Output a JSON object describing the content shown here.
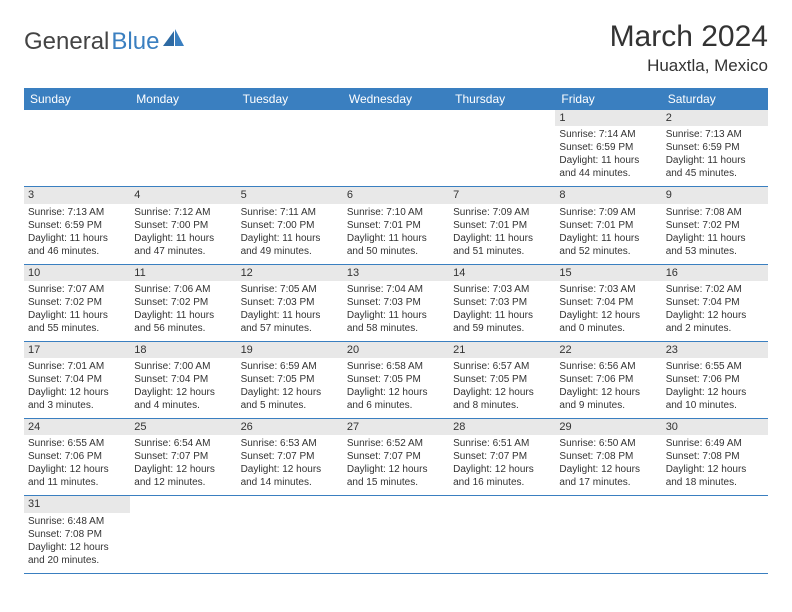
{
  "logo": {
    "part1": "General",
    "part2": "Blue"
  },
  "title": "March 2024",
  "location": "Huaxtla, Mexico",
  "weekdays": [
    "Sunday",
    "Monday",
    "Tuesday",
    "Wednesday",
    "Thursday",
    "Friday",
    "Saturday"
  ],
  "colors": {
    "header_bg": "#3a7fc0",
    "header_text": "#ffffff",
    "daynum_bg": "#e8e8e8",
    "cell_border": "#3a7fc0",
    "text": "#333333",
    "background": "#ffffff"
  },
  "typography": {
    "month_title_fontsize": 30,
    "location_fontsize": 17,
    "weekday_fontsize": 12,
    "cell_fontsize": 10,
    "daynum_fontsize": 11,
    "logo_fontsize": 24
  },
  "layout": {
    "columns": 7,
    "rows": 6,
    "start_weekday_index": 5
  },
  "days": [
    {
      "n": 1,
      "sunrise": "7:14 AM",
      "sunset": "6:59 PM",
      "daylight": "11 hours and 44 minutes."
    },
    {
      "n": 2,
      "sunrise": "7:13 AM",
      "sunset": "6:59 PM",
      "daylight": "11 hours and 45 minutes."
    },
    {
      "n": 3,
      "sunrise": "7:13 AM",
      "sunset": "6:59 PM",
      "daylight": "11 hours and 46 minutes."
    },
    {
      "n": 4,
      "sunrise": "7:12 AM",
      "sunset": "7:00 PM",
      "daylight": "11 hours and 47 minutes."
    },
    {
      "n": 5,
      "sunrise": "7:11 AM",
      "sunset": "7:00 PM",
      "daylight": "11 hours and 49 minutes."
    },
    {
      "n": 6,
      "sunrise": "7:10 AM",
      "sunset": "7:01 PM",
      "daylight": "11 hours and 50 minutes."
    },
    {
      "n": 7,
      "sunrise": "7:09 AM",
      "sunset": "7:01 PM",
      "daylight": "11 hours and 51 minutes."
    },
    {
      "n": 8,
      "sunrise": "7:09 AM",
      "sunset": "7:01 PM",
      "daylight": "11 hours and 52 minutes."
    },
    {
      "n": 9,
      "sunrise": "7:08 AM",
      "sunset": "7:02 PM",
      "daylight": "11 hours and 53 minutes."
    },
    {
      "n": 10,
      "sunrise": "7:07 AM",
      "sunset": "7:02 PM",
      "daylight": "11 hours and 55 minutes."
    },
    {
      "n": 11,
      "sunrise": "7:06 AM",
      "sunset": "7:02 PM",
      "daylight": "11 hours and 56 minutes."
    },
    {
      "n": 12,
      "sunrise": "7:05 AM",
      "sunset": "7:03 PM",
      "daylight": "11 hours and 57 minutes."
    },
    {
      "n": 13,
      "sunrise": "7:04 AM",
      "sunset": "7:03 PM",
      "daylight": "11 hours and 58 minutes."
    },
    {
      "n": 14,
      "sunrise": "7:03 AM",
      "sunset": "7:03 PM",
      "daylight": "11 hours and 59 minutes."
    },
    {
      "n": 15,
      "sunrise": "7:03 AM",
      "sunset": "7:04 PM",
      "daylight": "12 hours and 0 minutes."
    },
    {
      "n": 16,
      "sunrise": "7:02 AM",
      "sunset": "7:04 PM",
      "daylight": "12 hours and 2 minutes."
    },
    {
      "n": 17,
      "sunrise": "7:01 AM",
      "sunset": "7:04 PM",
      "daylight": "12 hours and 3 minutes."
    },
    {
      "n": 18,
      "sunrise": "7:00 AM",
      "sunset": "7:04 PM",
      "daylight": "12 hours and 4 minutes."
    },
    {
      "n": 19,
      "sunrise": "6:59 AM",
      "sunset": "7:05 PM",
      "daylight": "12 hours and 5 minutes."
    },
    {
      "n": 20,
      "sunrise": "6:58 AM",
      "sunset": "7:05 PM",
      "daylight": "12 hours and 6 minutes."
    },
    {
      "n": 21,
      "sunrise": "6:57 AM",
      "sunset": "7:05 PM",
      "daylight": "12 hours and 8 minutes."
    },
    {
      "n": 22,
      "sunrise": "6:56 AM",
      "sunset": "7:06 PM",
      "daylight": "12 hours and 9 minutes."
    },
    {
      "n": 23,
      "sunrise": "6:55 AM",
      "sunset": "7:06 PM",
      "daylight": "12 hours and 10 minutes."
    },
    {
      "n": 24,
      "sunrise": "6:55 AM",
      "sunset": "7:06 PM",
      "daylight": "12 hours and 11 minutes."
    },
    {
      "n": 25,
      "sunrise": "6:54 AM",
      "sunset": "7:07 PM",
      "daylight": "12 hours and 12 minutes."
    },
    {
      "n": 26,
      "sunrise": "6:53 AM",
      "sunset": "7:07 PM",
      "daylight": "12 hours and 14 minutes."
    },
    {
      "n": 27,
      "sunrise": "6:52 AM",
      "sunset": "7:07 PM",
      "daylight": "12 hours and 15 minutes."
    },
    {
      "n": 28,
      "sunrise": "6:51 AM",
      "sunset": "7:07 PM",
      "daylight": "12 hours and 16 minutes."
    },
    {
      "n": 29,
      "sunrise": "6:50 AM",
      "sunset": "7:08 PM",
      "daylight": "12 hours and 17 minutes."
    },
    {
      "n": 30,
      "sunrise": "6:49 AM",
      "sunset": "7:08 PM",
      "daylight": "12 hours and 18 minutes."
    },
    {
      "n": 31,
      "sunrise": "6:48 AM",
      "sunset": "7:08 PM",
      "daylight": "12 hours and 20 minutes."
    }
  ],
  "labels": {
    "sunrise": "Sunrise:",
    "sunset": "Sunset:",
    "daylight": "Daylight:"
  }
}
